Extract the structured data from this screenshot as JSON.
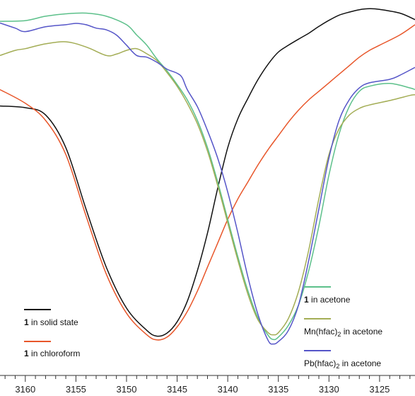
{
  "chart_data": {
    "type": "line",
    "xlabel": "",
    "ylabel": "",
    "xlim": [
      3162.5,
      3121.5
    ],
    "ylim": [
      0,
      100
    ],
    "x_ticks": [
      3160,
      3155,
      3150,
      3145,
      3140,
      3135,
      3130,
      3125
    ],
    "x_tick_labels": [
      "3160",
      "3155",
      "3150",
      "3145",
      "3140",
      "3135",
      "3130",
      "3125"
    ],
    "grid": false,
    "legend": "inside, bottom-left and bottom-right",
    "series": [
      {
        "key": "solid",
        "color": "#111111",
        "legend": {
          "bold": "1",
          "text": " in solid state"
        },
        "points": [
          [
            3162.5,
            70.2
          ],
          [
            3160,
            69.7
          ],
          [
            3158,
            67.6
          ],
          [
            3156,
            58.0
          ],
          [
            3154,
            40.0
          ],
          [
            3152,
            23.0
          ],
          [
            3150,
            11.0
          ],
          [
            3148,
            4.5
          ],
          [
            3147,
            2.8
          ],
          [
            3146,
            3.7
          ],
          [
            3145,
            7.0
          ],
          [
            3144,
            13.0
          ],
          [
            3143,
            22.0
          ],
          [
            3142,
            33.0
          ],
          [
            3141,
            46.0
          ],
          [
            3140,
            58.0
          ],
          [
            3139,
            66.5
          ],
          [
            3138,
            72.5
          ],
          [
            3137,
            78.0
          ],
          [
            3136,
            82.5
          ],
          [
            3135,
            86.0
          ],
          [
            3134,
            88.0
          ],
          [
            3133,
            89.8
          ],
          [
            3132,
            91.5
          ],
          [
            3131,
            93.5
          ],
          [
            3130,
            95.3
          ],
          [
            3129,
            96.8
          ],
          [
            3128,
            97.7
          ],
          [
            3127,
            98.4
          ],
          [
            3126,
            98.7
          ],
          [
            3125,
            98.5
          ],
          [
            3123,
            97.4
          ],
          [
            3121.5,
            95.5
          ]
        ]
      },
      {
        "key": "chloroform",
        "color": "#e8562a",
        "legend": {
          "bold": "1",
          "text": " in chloroform"
        },
        "points": [
          [
            3162.5,
            75.0
          ],
          [
            3160,
            71.0
          ],
          [
            3158,
            66.0
          ],
          [
            3156,
            56.0
          ],
          [
            3154,
            38.0
          ],
          [
            3152,
            21.0
          ],
          [
            3150,
            9.5
          ],
          [
            3148,
            3.2
          ],
          [
            3147,
            1.7
          ],
          [
            3146,
            2.5
          ],
          [
            3145,
            5.5
          ],
          [
            3144,
            10.0
          ],
          [
            3143,
            16.0
          ],
          [
            3142,
            23.0
          ],
          [
            3141,
            30.0
          ],
          [
            3140,
            37.0
          ],
          [
            3139,
            43.0
          ],
          [
            3138,
            48.0
          ],
          [
            3137,
            53.0
          ],
          [
            3136,
            57.5
          ],
          [
            3135,
            61.5
          ],
          [
            3134,
            65.5
          ],
          [
            3133,
            69.0
          ],
          [
            3132,
            72.0
          ],
          [
            3131,
            74.5
          ],
          [
            3130,
            77.0
          ],
          [
            3129,
            79.5
          ],
          [
            3128,
            82.0
          ],
          [
            3127,
            84.5
          ],
          [
            3126,
            86.5
          ],
          [
            3125,
            88.0
          ],
          [
            3123,
            91.0
          ],
          [
            3121.5,
            94.0
          ]
        ]
      },
      {
        "key": "acetone",
        "color": "#5cc08a",
        "legend": {
          "bold": "1",
          "text": " in acetone"
        },
        "points": [
          [
            3162.5,
            95.0
          ],
          [
            3160,
            95.2
          ],
          [
            3158,
            96.5
          ],
          [
            3156,
            97.2
          ],
          [
            3154,
            97.4
          ],
          [
            3152,
            96.5
          ],
          [
            3150,
            94.0
          ],
          [
            3149,
            91.0
          ],
          [
            3148,
            88.0
          ],
          [
            3147,
            84.0
          ],
          [
            3146,
            80.5
          ],
          [
            3145,
            76.5
          ],
          [
            3144,
            72.0
          ],
          [
            3143,
            66.0
          ],
          [
            3142,
            58.0
          ],
          [
            3141,
            48.0
          ],
          [
            3140,
            37.0
          ],
          [
            3139,
            26.0
          ],
          [
            3138,
            16.0
          ],
          [
            3137,
            8.0
          ],
          [
            3136,
            3.0
          ],
          [
            3135.5,
            1.8
          ],
          [
            3135,
            2.5
          ],
          [
            3134,
            6.0
          ],
          [
            3133,
            12.0
          ],
          [
            3132,
            22.0
          ],
          [
            3131,
            35.0
          ],
          [
            3130,
            50.0
          ],
          [
            3129,
            62.0
          ],
          [
            3128,
            70.0
          ],
          [
            3127,
            74.5
          ],
          [
            3126,
            76.0
          ],
          [
            3124,
            76.8
          ],
          [
            3122,
            75.5
          ],
          [
            3121.5,
            75.0
          ]
        ]
      },
      {
        "key": "mn",
        "color": "#a3ad55",
        "legend": {
          "prefix": "Mn(hfac)",
          "sub": "2",
          "text": " in acetone"
        },
        "points": [
          [
            3162.5,
            85.0
          ],
          [
            3161,
            86.5
          ],
          [
            3160,
            87.0
          ],
          [
            3158,
            88.4
          ],
          [
            3156,
            89.0
          ],
          [
            3154,
            87.5
          ],
          [
            3152,
            85.0
          ],
          [
            3151,
            85.4
          ],
          [
            3150,
            86.5
          ],
          [
            3149,
            87.0
          ],
          [
            3148,
            85.5
          ],
          [
            3147,
            83.5
          ],
          [
            3146,
            80.0
          ],
          [
            3145,
            76.0
          ],
          [
            3144,
            71.0
          ],
          [
            3143,
            65.0
          ],
          [
            3142,
            57.0
          ],
          [
            3141,
            47.0
          ],
          [
            3140,
            36.0
          ],
          [
            3139,
            25.0
          ],
          [
            3138,
            15.0
          ],
          [
            3137,
            7.5
          ],
          [
            3136,
            3.8
          ],
          [
            3135.5,
            3.2
          ],
          [
            3135,
            3.8
          ],
          [
            3134,
            8.0
          ],
          [
            3133,
            16.0
          ],
          [
            3132,
            28.0
          ],
          [
            3131,
            43.0
          ],
          [
            3130,
            56.0
          ],
          [
            3129,
            63.5
          ],
          [
            3128,
            67.5
          ],
          [
            3127,
            69.5
          ],
          [
            3126,
            70.5
          ],
          [
            3124,
            71.8
          ],
          [
            3122,
            73.3
          ],
          [
            3121.5,
            73.5
          ]
        ]
      },
      {
        "key": "pb",
        "color": "#5555c8",
        "legend": {
          "prefix": "Pb(hfac)",
          "sub": "2",
          "text": " in acetone"
        },
        "points": [
          [
            3162.5,
            94.5
          ],
          [
            3161,
            93.0
          ],
          [
            3160,
            92.0
          ],
          [
            3158,
            93.4
          ],
          [
            3156,
            94.0
          ],
          [
            3155,
            94.4
          ],
          [
            3154,
            94.0
          ],
          [
            3153,
            93.0
          ],
          [
            3152,
            92.5
          ],
          [
            3151,
            91.0
          ],
          [
            3150,
            88.0
          ],
          [
            3149,
            85.0
          ],
          [
            3148,
            84.5
          ],
          [
            3147,
            83.0
          ],
          [
            3146,
            81.0
          ],
          [
            3145,
            79.8
          ],
          [
            3144.5,
            78.5
          ],
          [
            3144,
            75.0
          ],
          [
            3143,
            70.0
          ],
          [
            3142,
            63.0
          ],
          [
            3141,
            55.0
          ],
          [
            3140,
            45.0
          ],
          [
            3139,
            33.0
          ],
          [
            3138,
            20.0
          ],
          [
            3137,
            9.0
          ],
          [
            3136,
            1.5
          ],
          [
            3135.5,
            0.5
          ],
          [
            3135,
            1.2
          ],
          [
            3134,
            4.5
          ],
          [
            3133,
            12.0
          ],
          [
            3132,
            25.0
          ],
          [
            3131,
            40.0
          ],
          [
            3130,
            55.0
          ],
          [
            3129,
            66.0
          ],
          [
            3128,
            72.0
          ],
          [
            3127,
            75.5
          ],
          [
            3126,
            77.0
          ],
          [
            3124,
            78.0
          ],
          [
            3123,
            79.2
          ],
          [
            3121.5,
            81.5
          ]
        ]
      }
    ]
  }
}
